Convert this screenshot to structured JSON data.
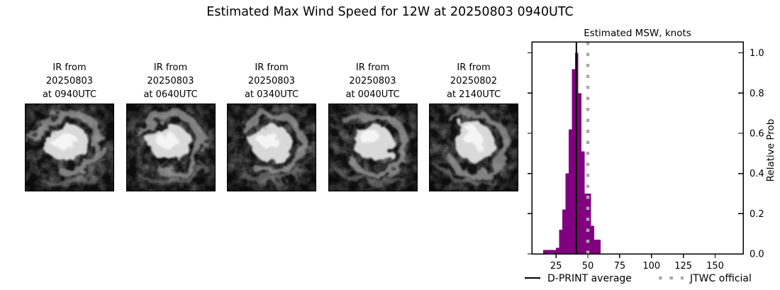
{
  "header": {
    "title": "Estimated Max Wind Speed for 12W at 20250803 0940UTC"
  },
  "tiles": [
    {
      "label_lines": [
        "IR from",
        "20250803",
        "at 0940UTC"
      ]
    },
    {
      "label_lines": [
        "IR from",
        "20250803",
        "at 0640UTC"
      ]
    },
    {
      "label_lines": [
        "IR from",
        "20250803",
        "at 0340UTC"
      ]
    },
    {
      "label_lines": [
        "IR from",
        "20250803",
        "at 0040UTC"
      ]
    },
    {
      "label_lines": [
        "IR from",
        "20250802",
        "at 2140UTC"
      ]
    }
  ],
  "chart_data": {
    "type": "bar",
    "title": "Estimated MSW, knots",
    "xlabel": "",
    "ylabel": "Relative Prob",
    "bin_start": 15,
    "bin_width": 2.5,
    "values": [
      0.02,
      0.02,
      0.02,
      0.02,
      0.03,
      0.12,
      0.22,
      0.4,
      0.62,
      0.92,
      1.0,
      0.8,
      0.51,
      0.3,
      0.3,
      0.14,
      0.07,
      0.07
    ],
    "xlim": [
      6,
      172
    ],
    "ylim": [
      0,
      1.055
    ],
    "xticks": [
      25,
      50,
      75,
      100,
      125,
      150
    ],
    "yticks": [
      0.0,
      0.2,
      0.4,
      0.6,
      0.8,
      1.0
    ],
    "grid": false,
    "bar_color": "#800080",
    "dprint_average": 41,
    "jtwc_official": 50,
    "dprint_line_color": "#000000",
    "jtwc_line_color": "#a9a9a9",
    "legend": [
      {
        "label": "D-PRINT average",
        "style": "solid-black"
      },
      {
        "label": "JTWC official",
        "style": "dotted-gray"
      }
    ],
    "legend_position": "below"
  }
}
